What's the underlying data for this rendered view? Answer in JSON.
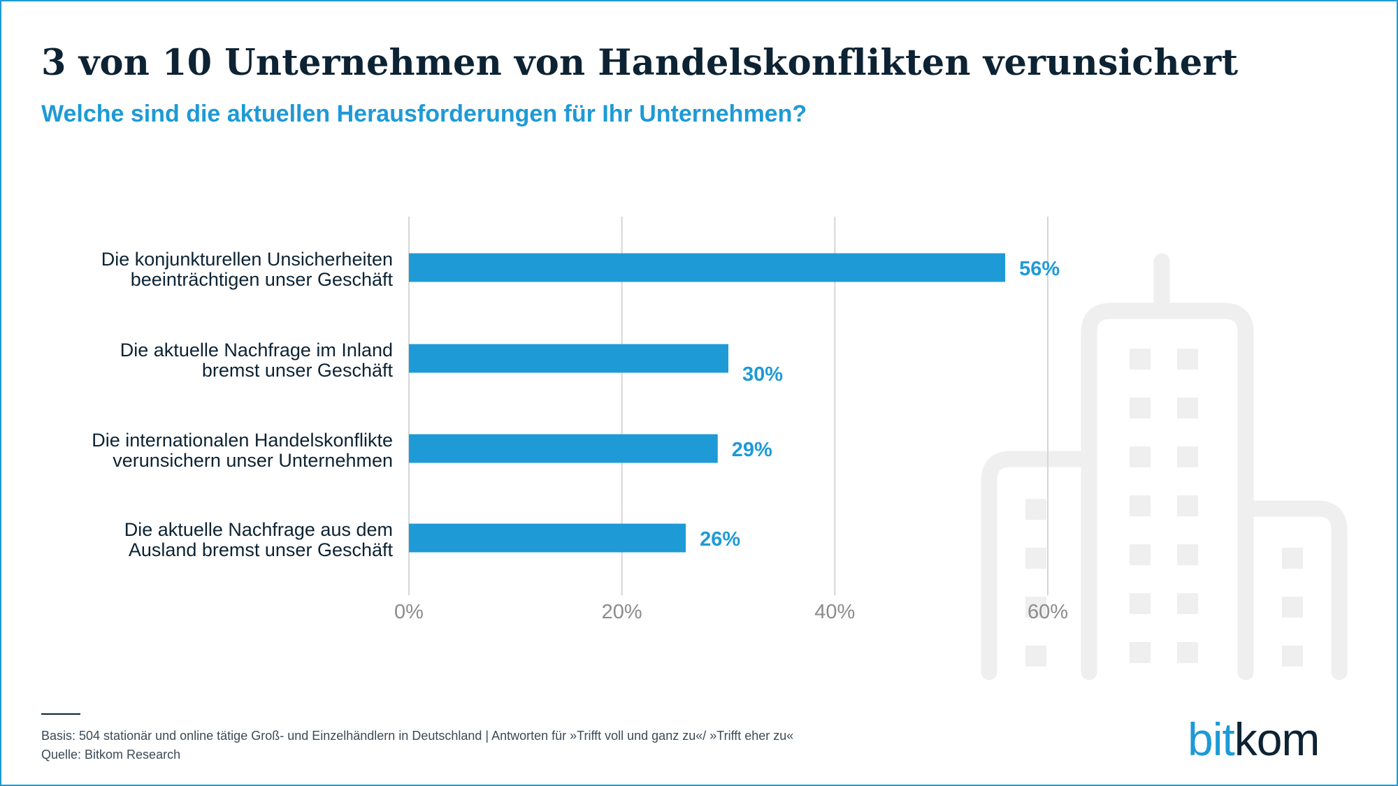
{
  "header": {
    "title": "3 von 10 Unternehmen von Handelskonflikten verunsichert",
    "subtitle": "Welche sind die aktuellen Herausforderungen für Ihr Unternehmen?"
  },
  "chart_data": {
    "type": "bar",
    "orientation": "horizontal",
    "categories": [
      [
        "Die konjunkturellen Unsicherheiten",
        "beeinträchtigen unser Geschäft"
      ],
      [
        "Die aktuelle Nachfrage im Inland",
        "bremst unser Geschäft"
      ],
      [
        "Die internationalen Handelskonflikte",
        "verunsichern unser Unternehmen"
      ],
      [
        "Die aktuelle Nachfrage aus dem",
        "Ausland bremst unser Geschäft"
      ]
    ],
    "values": [
      56,
      30,
      29,
      26
    ],
    "value_labels": [
      "56%",
      "30%",
      "29%",
      "26%"
    ],
    "xlim": [
      0,
      60
    ],
    "xticks": [
      0,
      20,
      40,
      60
    ],
    "xtick_labels": [
      "0%",
      "20%",
      "40%",
      "60%"
    ],
    "grid": true,
    "bar_color": "#1e9ad6"
  },
  "footer": {
    "basis": "Basis: 504 stationär und online tätige Groß- und Einzelhändlern in Deutschland | Antworten für »Trifft voll und ganz zu«/ »Trifft eher zu«",
    "source": "Quelle: Bitkom Research"
  },
  "logo": {
    "part1": "bit",
    "part2": "kom"
  },
  "colors": {
    "accent": "#1e9ad6",
    "dark": "#0d2333",
    "grid": "#d6d6d6",
    "illustration": "#efefef",
    "tick": "#8c8c8c"
  }
}
